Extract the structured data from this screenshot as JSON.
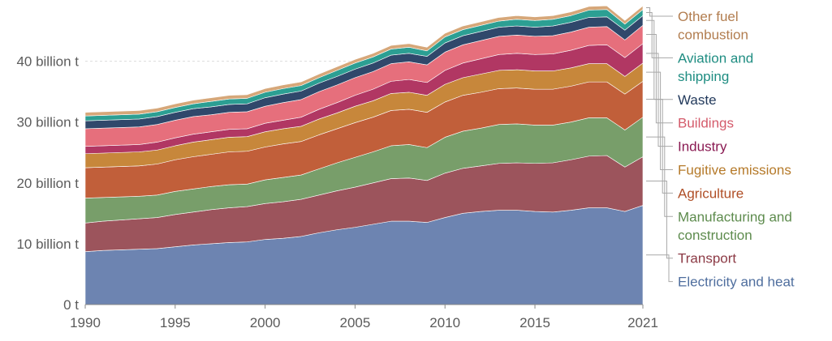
{
  "chart_data": {
    "type": "area",
    "stacked": true,
    "x": [
      1990,
      1991,
      1992,
      1993,
      1994,
      1995,
      1996,
      1997,
      1998,
      1999,
      2000,
      2001,
      2002,
      2003,
      2004,
      2005,
      2006,
      2007,
      2008,
      2009,
      2010,
      2011,
      2012,
      2013,
      2014,
      2015,
      2016,
      2017,
      2018,
      2019,
      2020,
      2021
    ],
    "xticks": [
      {
        "value": 1990,
        "label": "1990"
      },
      {
        "value": 1995,
        "label": "1995"
      },
      {
        "value": 2000,
        "label": "2000"
      },
      {
        "value": 2005,
        "label": "2005"
      },
      {
        "value": 2010,
        "label": "2010"
      },
      {
        "value": 2015,
        "label": "2015"
      },
      {
        "value": 2021,
        "label": "2021"
      }
    ],
    "yticks": [
      {
        "value": 0,
        "label": "0 t"
      },
      {
        "value": 10,
        "label": "10 billion t"
      },
      {
        "value": 20,
        "label": "20 billion t"
      },
      {
        "value": 30,
        "label": "30 billion t"
      },
      {
        "value": 40,
        "label": "40 billion t"
      }
    ],
    "ylim": [
      0,
      49
    ],
    "xlim": [
      1990,
      2021
    ],
    "grid": "horizontal dashed",
    "legend_position": "right",
    "series": [
      {
        "name": "Electricity and heat",
        "color": "#6d84b1",
        "values": [
          8.7,
          8.9,
          9.0,
          9.1,
          9.2,
          9.5,
          9.8,
          10.0,
          10.2,
          10.3,
          10.7,
          10.9,
          11.2,
          11.8,
          12.3,
          12.7,
          13.2,
          13.7,
          13.7,
          13.5,
          14.3,
          15.0,
          15.3,
          15.5,
          15.5,
          15.3,
          15.2,
          15.5,
          15.9,
          15.9,
          15.3,
          16.3
        ]
      },
      {
        "name": "Transport",
        "color": "#9c545c",
        "values": [
          4.7,
          4.8,
          4.9,
          5.0,
          5.1,
          5.3,
          5.4,
          5.6,
          5.7,
          5.8,
          5.9,
          6.0,
          6.1,
          6.2,
          6.4,
          6.6,
          6.8,
          7.0,
          7.1,
          6.9,
          7.3,
          7.4,
          7.5,
          7.7,
          7.8,
          7.9,
          8.1,
          8.3,
          8.5,
          8.6,
          7.3,
          8.0
        ]
      },
      {
        "name": "Manufacturing and construction",
        "color": "#789e6a",
        "values": [
          4.1,
          3.9,
          3.8,
          3.7,
          3.7,
          3.8,
          3.8,
          3.8,
          3.8,
          3.7,
          3.9,
          4.0,
          4.0,
          4.3,
          4.6,
          4.9,
          5.1,
          5.4,
          5.5,
          5.4,
          5.9,
          6.1,
          6.2,
          6.4,
          6.4,
          6.3,
          6.2,
          6.2,
          6.3,
          6.2,
          6.1,
          6.5
        ]
      },
      {
        "name": "Agriculture",
        "color": "#c15f3a",
        "values": [
          5.0,
          5.0,
          5.0,
          5.0,
          5.1,
          5.2,
          5.3,
          5.3,
          5.4,
          5.4,
          5.4,
          5.5,
          5.5,
          5.6,
          5.6,
          5.7,
          5.7,
          5.8,
          5.8,
          5.8,
          5.8,
          5.9,
          5.9,
          5.9,
          5.9,
          5.9,
          5.9,
          5.9,
          5.9,
          5.9,
          5.9,
          5.9
        ]
      },
      {
        "name": "Fugitive emissions",
        "color": "#c7873b",
        "values": [
          2.3,
          2.3,
          2.3,
          2.3,
          2.3,
          2.3,
          2.4,
          2.4,
          2.4,
          2.4,
          2.5,
          2.5,
          2.5,
          2.6,
          2.6,
          2.7,
          2.7,
          2.8,
          2.8,
          2.8,
          2.9,
          2.9,
          3.0,
          3.0,
          3.0,
          3.0,
          3.0,
          3.0,
          3.0,
          3.0,
          2.9,
          3.0
        ]
      },
      {
        "name": "Industry",
        "color": "#b13763",
        "values": [
          1.2,
          1.2,
          1.2,
          1.2,
          1.3,
          1.3,
          1.3,
          1.3,
          1.3,
          1.3,
          1.4,
          1.4,
          1.5,
          1.6,
          1.7,
          1.8,
          1.9,
          2.0,
          2.1,
          2.1,
          2.3,
          2.4,
          2.5,
          2.6,
          2.7,
          2.7,
          2.8,
          2.9,
          3.0,
          3.1,
          3.1,
          3.2
        ]
      },
      {
        "name": "Buildings",
        "color": "#e66f7c",
        "values": [
          2.9,
          2.9,
          2.9,
          2.9,
          2.9,
          2.9,
          2.9,
          2.8,
          2.8,
          2.8,
          2.8,
          2.9,
          2.9,
          2.9,
          2.9,
          2.9,
          2.9,
          2.9,
          2.9,
          2.9,
          3.0,
          3.0,
          3.0,
          3.0,
          3.0,
          3.0,
          3.0,
          3.0,
          3.0,
          3.0,
          2.9,
          3.0
        ]
      },
      {
        "name": "Waste",
        "color": "#30486b",
        "values": [
          1.3,
          1.3,
          1.3,
          1.3,
          1.3,
          1.3,
          1.3,
          1.3,
          1.3,
          1.3,
          1.4,
          1.4,
          1.4,
          1.4,
          1.4,
          1.4,
          1.4,
          1.4,
          1.4,
          1.4,
          1.5,
          1.5,
          1.5,
          1.5,
          1.5,
          1.5,
          1.6,
          1.6,
          1.6,
          1.6,
          1.6,
          1.6
        ]
      },
      {
        "name": "Aviation and shipping",
        "color": "#2c9f93",
        "values": [
          0.8,
          0.8,
          0.8,
          0.8,
          0.8,
          0.8,
          0.8,
          0.9,
          0.9,
          0.9,
          0.9,
          0.9,
          0.9,
          0.9,
          1.0,
          1.0,
          1.0,
          1.0,
          1.0,
          0.9,
          1.0,
          1.0,
          1.0,
          1.0,
          1.1,
          1.1,
          1.1,
          1.1,
          1.2,
          1.2,
          1.0,
          1.0
        ]
      },
      {
        "name": "Other fuel combustion",
        "color": "#d6a779",
        "values": [
          0.6,
          0.6,
          0.6,
          0.6,
          0.6,
          0.6,
          0.6,
          0.6,
          0.6,
          0.6,
          0.6,
          0.6,
          0.6,
          0.6,
          0.6,
          0.6,
          0.6,
          0.6,
          0.6,
          0.6,
          0.6,
          0.6,
          0.6,
          0.6,
          0.6,
          0.6,
          0.6,
          0.6,
          0.6,
          0.6,
          0.6,
          0.6
        ]
      }
    ],
    "legend_labels": [
      {
        "series": "Other fuel combustion",
        "lines": [
          "Other fuel",
          "combustion"
        ],
        "color": "#b27d4f"
      },
      {
        "series": "Aviation and shipping",
        "lines": [
          "Aviation and",
          "shipping"
        ],
        "color": "#1f8d82"
      },
      {
        "series": "Waste",
        "lines": [
          "Waste"
        ],
        "color": "#233a5c"
      },
      {
        "series": "Buildings",
        "lines": [
          "Buildings"
        ],
        "color": "#d45b6b"
      },
      {
        "series": "Industry",
        "lines": [
          "Industry"
        ],
        "color": "#8a1a52"
      },
      {
        "series": "Fugitive emissions",
        "lines": [
          "Fugitive emissions"
        ],
        "color": "#b57a2a"
      },
      {
        "series": "Agriculture",
        "lines": [
          "Agriculture"
        ],
        "color": "#b04f27"
      },
      {
        "series": "Manufacturing and construction",
        "lines": [
          "Manufacturing and",
          "construction"
        ],
        "color": "#5d8b4d"
      },
      {
        "series": "Transport",
        "lines": [
          "Transport"
        ],
        "color": "#8c3a45"
      },
      {
        "series": "Electricity and heat",
        "lines": [
          "Electricity and heat"
        ],
        "color": "#4f6e9e"
      }
    ]
  }
}
